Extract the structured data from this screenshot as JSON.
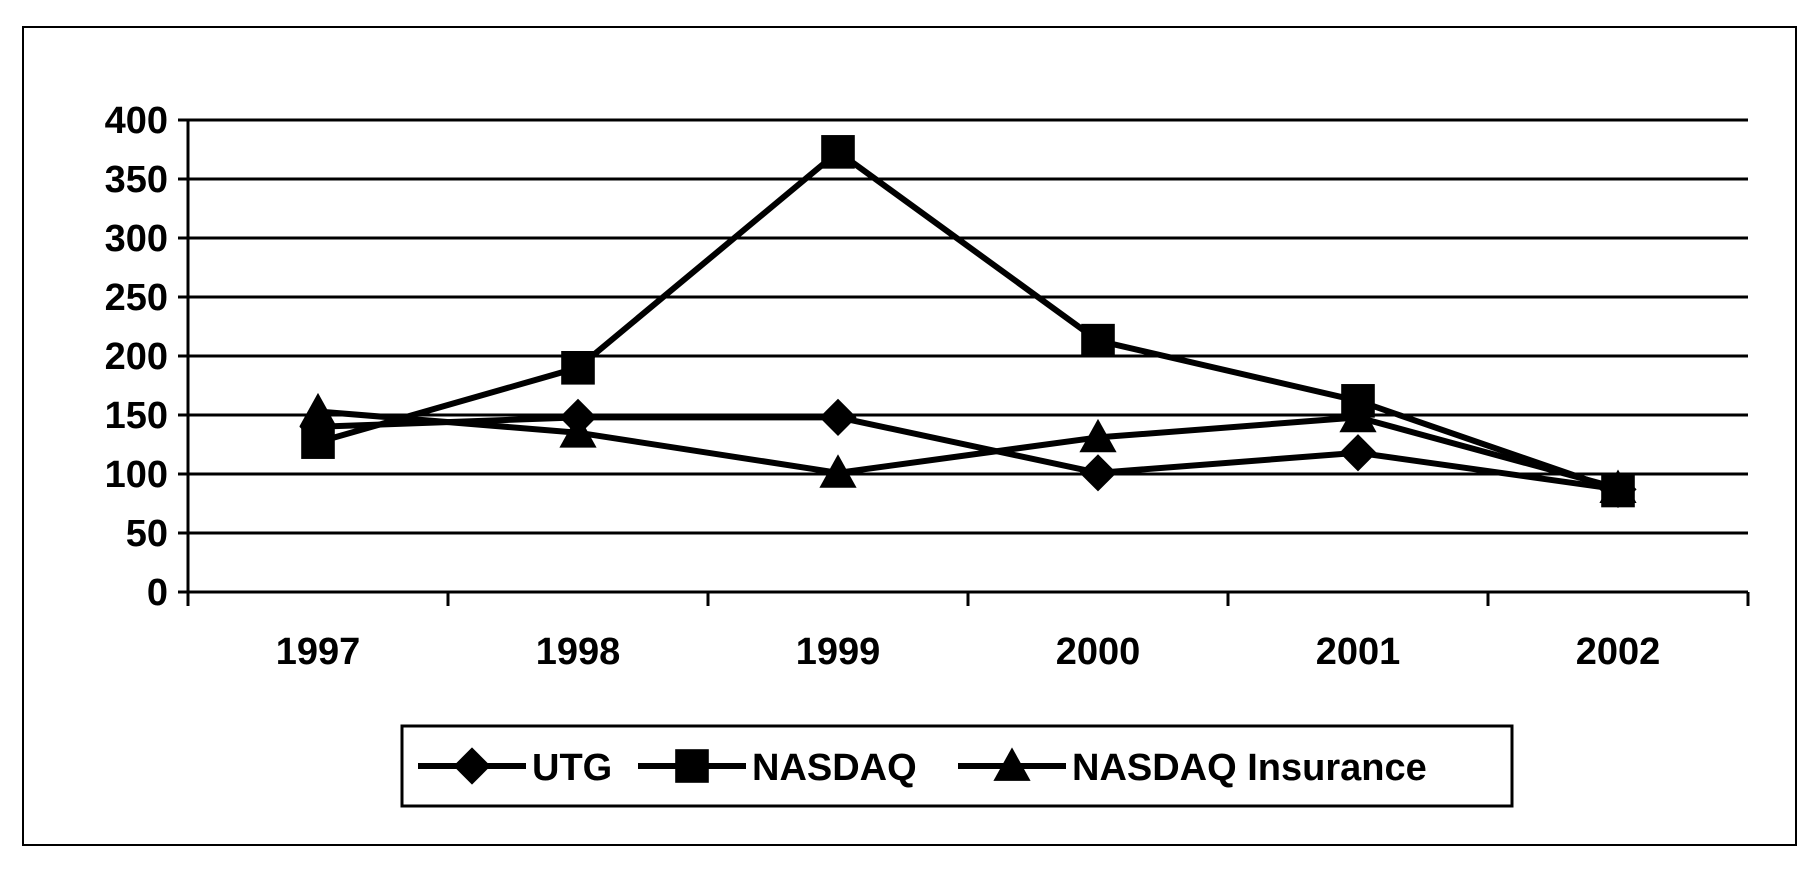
{
  "chart_data": {
    "type": "line",
    "title": "",
    "xlabel": "",
    "ylabel": "",
    "categories": [
      "1997",
      "1998",
      "1999",
      "2000",
      "2001",
      "2002"
    ],
    "ylim": [
      0,
      400
    ],
    "yticks": [
      0,
      50,
      100,
      150,
      200,
      250,
      300,
      350,
      400
    ],
    "grid": true,
    "legend_position": "bottom",
    "series": [
      {
        "name": "UTG",
        "marker": "diamond",
        "color": "#000000",
        "values": [
          140,
          148,
          148,
          101,
          118,
          87
        ]
      },
      {
        "name": "NASDAQ",
        "marker": "square",
        "color": "#000000",
        "values": [
          127,
          190,
          373,
          213,
          162,
          86
        ]
      },
      {
        "name": "NASDAQ Insurance",
        "marker": "triangle",
        "color": "#000000",
        "values": [
          153,
          135,
          101,
          131,
          148,
          88
        ]
      }
    ]
  }
}
